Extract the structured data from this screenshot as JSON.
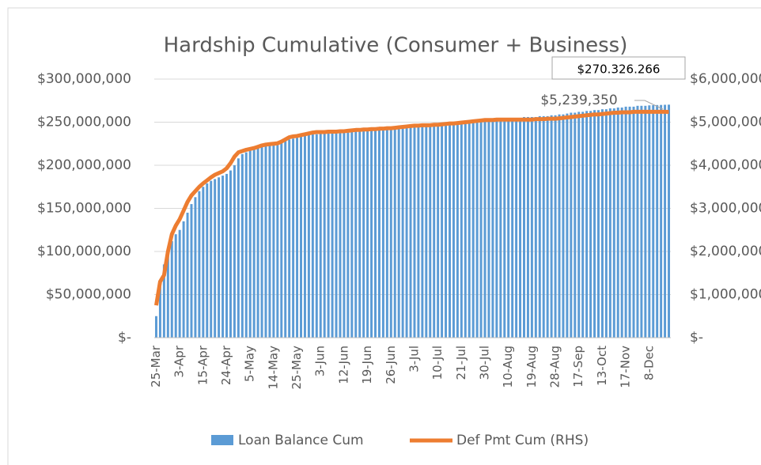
{
  "chart_data": {
    "type": "combo",
    "title": "Hardship Cumulative (Consumer + Business)",
    "categories": [
      "25-Mar",
      null,
      null,
      null,
      null,
      null,
      "3-Apr",
      null,
      null,
      null,
      null,
      null,
      "15-Apr",
      null,
      null,
      null,
      null,
      null,
      "24-Apr",
      null,
      null,
      null,
      null,
      null,
      "5-May",
      null,
      null,
      null,
      null,
      null,
      "14-May",
      null,
      null,
      null,
      null,
      null,
      "25-May",
      null,
      null,
      null,
      null,
      null,
      "3-Jun",
      null,
      null,
      null,
      null,
      null,
      "12-Jun",
      null,
      null,
      null,
      null,
      null,
      "19-Jun",
      null,
      null,
      null,
      null,
      null,
      "26-Jun",
      null,
      null,
      null,
      null,
      null,
      "3-Jul",
      null,
      null,
      null,
      null,
      null,
      "10-Jul",
      null,
      null,
      null,
      null,
      null,
      "21-Jul",
      null,
      null,
      null,
      null,
      null,
      "30-Jul",
      null,
      null,
      null,
      null,
      null,
      "10-Aug",
      null,
      null,
      null,
      null,
      null,
      "19-Aug",
      null,
      null,
      null,
      null,
      null,
      "28-Aug",
      null,
      null,
      null,
      null,
      null,
      "17-Sep",
      null,
      null,
      null,
      null,
      null,
      "13-Oct",
      null,
      null,
      null,
      null,
      null,
      "17-Nov",
      null,
      null,
      null,
      null,
      null,
      "8-Dec",
      null,
      null,
      null,
      null,
      null
    ],
    "series": [
      {
        "name": "Loan Balance Cum",
        "type": "bar",
        "color": "#5b9bd5",
        "values": [
          25000000,
          60000000,
          85000000,
          100000000,
          112000000,
          120000000,
          125000000,
          135000000,
          145000000,
          155000000,
          163000000,
          170000000,
          175000000,
          179000000,
          182000000,
          184000000,
          186000000,
          188000000,
          190000000,
          194000000,
          200000000,
          208000000,
          213000000,
          215000000,
          217000000,
          219000000,
          220000000,
          221000000,
          222000000,
          224000000,
          225000000,
          226000000,
          227000000,
          229000000,
          230000000,
          231000000,
          232000000,
          233000000,
          234000000,
          235000000,
          236000000,
          236000000,
          237000000,
          237000000,
          237000000,
          238000000,
          238000000,
          238000000,
          238000000,
          238000000,
          239000000,
          239000000,
          239000000,
          240000000,
          240000000,
          240000000,
          241000000,
          241000000,
          241000000,
          242000000,
          242000000,
          243000000,
          243000000,
          244000000,
          244000000,
          245000000,
          245000000,
          245000000,
          246000000,
          246000000,
          246000000,
          247000000,
          247000000,
          247000000,
          248000000,
          248000000,
          248000000,
          249000000,
          249000000,
          250000000,
          250000000,
          251000000,
          251000000,
          252000000,
          252000000,
          252000000,
          253000000,
          253000000,
          254000000,
          254000000,
          255000000,
          255000000,
          255000000,
          255000000,
          256000000,
          256000000,
          256000000,
          256000000,
          257000000,
          257000000,
          257000000,
          258000000,
          258000000,
          259000000,
          259000000,
          260000000,
          261000000,
          261000000,
          262000000,
          262000000,
          263000000,
          263000000,
          264000000,
          264000000,
          265000000,
          265000000,
          266000000,
          266000000,
          267000000,
          267000000,
          268000000,
          268000000,
          268000000,
          269000000,
          269000000,
          269000000,
          269500000,
          269700000,
          269900000,
          270000000,
          270200000,
          270326266
        ]
      },
      {
        "name": "Def Pmt Cum (RHS)",
        "type": "line",
        "axis": "y2",
        "color": "#ed7d31",
        "values": [
          750000,
          1300000,
          1450000,
          2000000,
          2400000,
          2600000,
          2750000,
          2950000,
          3150000,
          3300000,
          3400000,
          3500000,
          3580000,
          3650000,
          3720000,
          3780000,
          3820000,
          3860000,
          3930000,
          4050000,
          4200000,
          4300000,
          4330000,
          4360000,
          4380000,
          4400000,
          4430000,
          4460000,
          4480000,
          4490000,
          4500000,
          4510000,
          4550000,
          4600000,
          4650000,
          4670000,
          4680000,
          4700000,
          4720000,
          4740000,
          4760000,
          4770000,
          4770000,
          4770000,
          4780000,
          4780000,
          4780000,
          4790000,
          4790000,
          4800000,
          4810000,
          4820000,
          4820000,
          4830000,
          4830000,
          4840000,
          4840000,
          4850000,
          4850000,
          4860000,
          4860000,
          4870000,
          4880000,
          4890000,
          4900000,
          4910000,
          4920000,
          4920000,
          4930000,
          4930000,
          4930000,
          4940000,
          4940000,
          4950000,
          4960000,
          4970000,
          4970000,
          4980000,
          4990000,
          5000000,
          5010000,
          5020000,
          5030000,
          5040000,
          5050000,
          5050000,
          5050000,
          5060000,
          5060000,
          5060000,
          5060000,
          5060000,
          5060000,
          5060000,
          5060000,
          5060000,
          5060000,
          5070000,
          5070000,
          5070000,
          5080000,
          5080000,
          5080000,
          5090000,
          5100000,
          5110000,
          5120000,
          5130000,
          5140000,
          5150000,
          5160000,
          5170000,
          5180000,
          5180000,
          5190000,
          5200000,
          5210000,
          5220000,
          5220000,
          5230000,
          5230000,
          5230000,
          5240000,
          5240000,
          5240000,
          5240000,
          5240000,
          5240000,
          5240000,
          5240000,
          5240000,
          5239350
        ]
      }
    ],
    "ylim": [
      0,
      300000000
    ],
    "yticks": [
      {
        "value": 0,
        "label": "$-"
      },
      {
        "value": 50000000,
        "label": "$50,000,000"
      },
      {
        "value": 100000000,
        "label": "$100,000,000"
      },
      {
        "value": 150000000,
        "label": "$150,000,000"
      },
      {
        "value": 200000000,
        "label": "$200,000,000"
      },
      {
        "value": 250000000,
        "label": "$250,000,000"
      },
      {
        "value": 300000000,
        "label": "$300,000,000"
      }
    ],
    "y2lim": [
      0,
      6000000
    ],
    "y2ticks": [
      {
        "value": 0,
        "label": "$-"
      },
      {
        "value": 1000000,
        "label": "$1,000,000"
      },
      {
        "value": 2000000,
        "label": "$2,000,000"
      },
      {
        "value": 3000000,
        "label": "$3,000,000"
      },
      {
        "value": 4000000,
        "label": "$4,000,000"
      },
      {
        "value": 5000000,
        "label": "$5,000,000"
      },
      {
        "value": 6000000,
        "label": "$6,000,000"
      }
    ],
    "annotations": [
      {
        "text": "$270.326.266"
      },
      {
        "text": "$5,239,350"
      }
    ],
    "grid": true,
    "legend": "bottom"
  }
}
